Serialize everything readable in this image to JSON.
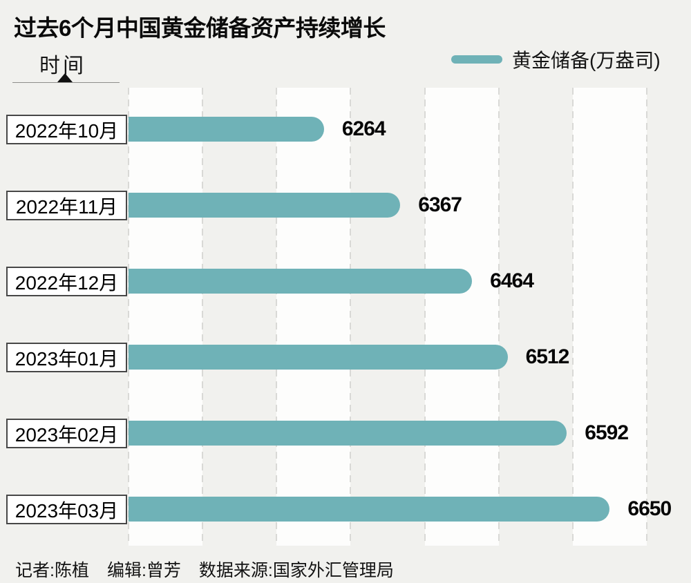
{
  "title": "过去6个月中国黄金储备资产持续增长",
  "y_axis": {
    "label": "时间"
  },
  "legend": {
    "label": "黄金储备(万盎司)"
  },
  "footer": {
    "reporter": "记者:陈植",
    "editor": "编辑:曾芳",
    "source": "数据来源:国家外汇管理局"
  },
  "colors": {
    "bar": "#6fb2b7",
    "background": "#f1f1ee",
    "stripe_white": "#fdfdfc",
    "gridline": "#d9d9d6",
    "label_box_border": "#474747"
  },
  "chart_data": {
    "type": "bar",
    "orientation": "horizontal",
    "title": "过去6个月中国黄金储备资产持续增长",
    "series_name": "黄金储备(万盎司)",
    "unit": "万盎司",
    "ylabel": "时间",
    "categories": [
      "2022年10月",
      "2022年11月",
      "2022年12月",
      "2023年01月",
      "2023年02月",
      "2023年03月"
    ],
    "values": [
      6264,
      6367,
      6464,
      6512,
      6592,
      6650
    ],
    "xlim": [
      6000,
      6700
    ],
    "grid_interval": 100,
    "grid": "vertical-dashed",
    "legend_position": "top-right",
    "bar_color": "#6fb2b7"
  }
}
